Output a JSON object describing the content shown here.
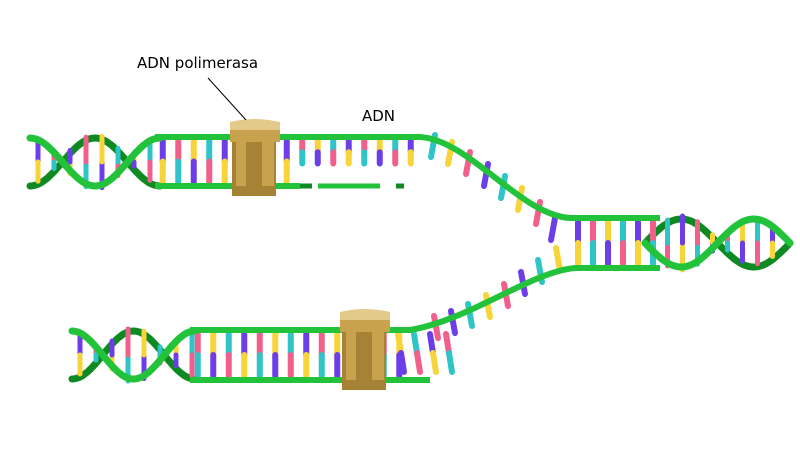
{
  "labels": {
    "polymerase": "ADN polimerasa",
    "dna": "ADN"
  },
  "colors": {
    "backbone": "#22c33a",
    "backbone_dark": "#0f8a22",
    "base_purple": "#6b3ee8",
    "base_pink": "#f0608a",
    "base_yellow": "#f7d53a",
    "base_cyan": "#2ec4c8",
    "enzyme": "#c9a24e",
    "enzyme_dark": "#a68236",
    "enzyme_light": "#e3c98a"
  },
  "structure": {
    "parent_helix": "double-helix",
    "replication_fork": "fork",
    "leading_strand": "upper-daughter",
    "lagging_strand": "lower-daughter",
    "enzyme_count": 2
  }
}
